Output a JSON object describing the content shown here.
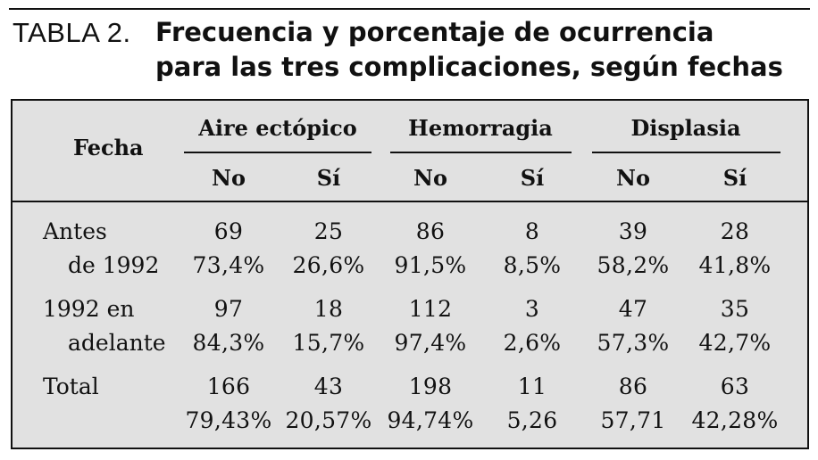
{
  "caption": {
    "label": "TABLA 2.",
    "title_line1": "Frecuencia y porcentaje de ocurrencia",
    "title_line2": "para las tres complicaciones, según fechas"
  },
  "table": {
    "row_header": "Fecha",
    "groups": [
      "Aire ectópico",
      "Hemorragia",
      "Displasia"
    ],
    "subheaders": [
      "No",
      "Sí",
      "No",
      "Sí",
      "No",
      "Sí"
    ],
    "rows": [
      {
        "label_line1": "Antes",
        "label_line2": "de 1992",
        "counts": [
          "69",
          "25",
          "86",
          "8",
          "39",
          "28"
        ],
        "percents": [
          "73,4%",
          "26,6%",
          "91,5%",
          "8,5%",
          "58,2%",
          "41,8%"
        ]
      },
      {
        "label_line1": "1992 en",
        "label_line2": "adelante",
        "counts": [
          "97",
          "18",
          "112",
          "3",
          "47",
          "35"
        ],
        "percents": [
          "84,3%",
          "15,7%",
          "97,4%",
          "2,6%",
          "57,3%",
          "42,7%"
        ]
      },
      {
        "label_line1": "Total",
        "label_line2": "",
        "counts": [
          "166",
          "43",
          "198",
          "11",
          "86",
          "63"
        ],
        "percents": [
          "79,43%",
          "20,57%",
          "94,74%",
          "5,26",
          "57,71",
          "42,28%"
        ]
      }
    ]
  }
}
